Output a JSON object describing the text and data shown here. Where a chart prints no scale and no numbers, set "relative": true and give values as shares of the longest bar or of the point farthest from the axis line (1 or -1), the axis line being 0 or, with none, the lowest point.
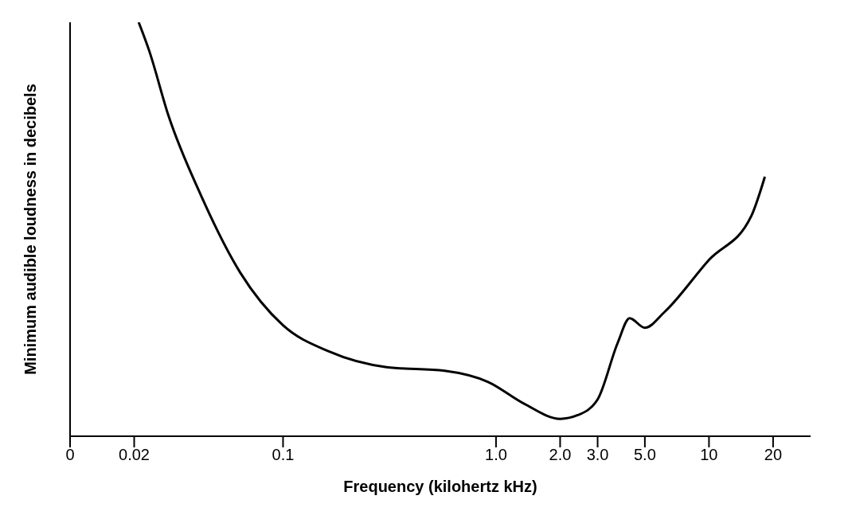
{
  "chart_data": {
    "type": "line",
    "relative": true,
    "log": "x",
    "xlabel": "Frequency (kilohertz kHz)",
    "ylabel": "Minimum audible loudness in decibels",
    "xlim": [
      0.01,
      30
    ],
    "xticks": [
      {
        "value": 0.01,
        "label": "0"
      },
      0.02,
      0.1,
      {
        "value": 1,
        "label": "1.0"
      },
      {
        "value": 2,
        "label": "2.0"
      },
      {
        "value": 3,
        "label": "3.0"
      },
      {
        "value": 5,
        "label": "5.0"
      },
      10,
      20
    ],
    "marker": "none",
    "line_style": "solid",
    "series": [
      {
        "color": "#000000",
        "x": [
          0.021,
          0.0235,
          0.029,
          0.041,
          0.063,
          0.1,
          0.164,
          0.306,
          0.574,
          0.918,
          1.36,
          2.0,
          2.42,
          3.0,
          3.73,
          4.24,
          5.0,
          6.18,
          10,
          15.8,
          18.3
        ],
        "values": [
          1.0,
          0.932,
          0.774,
          0.584,
          0.395,
          0.268,
          0.205,
          0.167,
          0.158,
          0.131,
          0.078,
          0.042,
          0.051,
          0.089,
          0.226,
          0.285,
          0.262,
          0.3,
          0.426,
          0.532,
          0.627
        ]
      }
    ]
  }
}
